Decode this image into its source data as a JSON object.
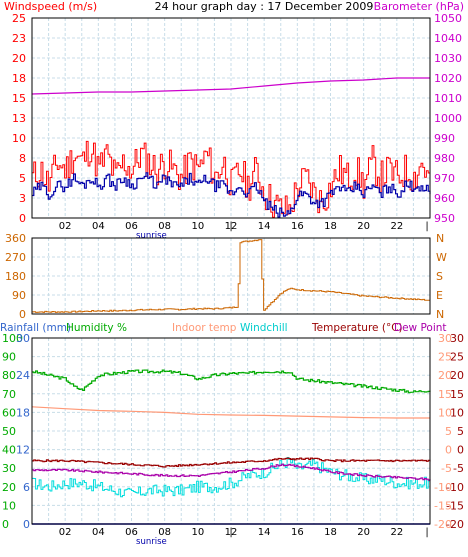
{
  "colors": {
    "windspeed": "#ff0000",
    "windspeed_avg": "#0000aa",
    "barometer": "#cc00cc",
    "winddir": "#cc6600",
    "rainfall": "#0000cc",
    "humidity": "#00aa00",
    "indoor": "#ff9977",
    "windchill": "#00dddd",
    "temperature": "#990000",
    "dewpoint": "#aa00aa",
    "grid": "#c8dde8",
    "axis_blue": "#0000cc",
    "text_dark": "#000000",
    "border": "#000000"
  },
  "chart_data": [
    {
      "type": "line",
      "title": "24 hour graph day : 17 December 2009",
      "legend": {
        "left": "Windspeed (m/s)",
        "right": "Barometer (hPa)"
      },
      "x_tick_labels": [
        "02",
        "04",
        "06",
        "08",
        "10",
        "12",
        "14",
        "16",
        "18",
        "20",
        "22"
      ],
      "x_annotation": "sunrise",
      "x_range_hours": [
        0,
        24
      ],
      "y_left_ticks": [
        "0",
        "3",
        "5",
        "8",
        "10",
        "13",
        "15",
        "18",
        "20",
        "23",
        "25"
      ],
      "y_left_range": [
        0,
        25
      ],
      "y_right_ticks": [
        "950",
        "960",
        "970",
        "980",
        "990",
        "1000",
        "1010",
        "1020",
        "1030",
        "1040",
        "1050"
      ],
      "y_right_range": [
        950,
        1050
      ],
      "grid": true,
      "series": [
        {
          "name": "Windspeed (m/s)",
          "axis": "left",
          "x": [
            0,
            0.5,
            1,
            1.5,
            2,
            2.5,
            3,
            3.5,
            4,
            4.5,
            5,
            5.5,
            6,
            6.5,
            7,
            7.5,
            8,
            8.5,
            9,
            9.5,
            10,
            10.5,
            11,
            11.5,
            12,
            12.5,
            13,
            13.5,
            14,
            14.5,
            15,
            15.5,
            16,
            16.5,
            17,
            17.5,
            18,
            18.5,
            19,
            19.5,
            20,
            20.5,
            21,
            21.5,
            22,
            22.5,
            23,
            23.5,
            24
          ],
          "y": [
            5,
            6,
            4,
            7,
            6,
            8,
            7,
            9,
            6,
            8,
            5,
            7,
            6,
            8,
            7,
            6,
            7,
            6,
            5,
            7,
            6,
            8,
            5,
            7,
            4,
            6,
            4,
            6,
            3,
            2,
            1,
            1,
            4,
            5,
            3,
            2,
            4,
            6,
            5,
            6,
            4,
            7,
            5,
            6,
            5,
            6,
            5,
            7,
            4
          ]
        },
        {
          "name": "Windspeed average",
          "axis": "left",
          "x": [
            0,
            0.5,
            1,
            1.5,
            2,
            2.5,
            3,
            3.5,
            4,
            4.5,
            5,
            5.5,
            6,
            6.5,
            7,
            7.5,
            8,
            8.5,
            9,
            9.5,
            10,
            10.5,
            11,
            11.5,
            12,
            12.5,
            13,
            13.5,
            14,
            14.5,
            15,
            15.5,
            16,
            16.5,
            17,
            17.5,
            18,
            18.5,
            19,
            19.5,
            20,
            20.5,
            21,
            21.5,
            22,
            22.5,
            23,
            23.5,
            24
          ],
          "y": [
            3,
            4,
            3,
            4,
            4,
            5,
            4,
            5,
            4,
            5,
            4,
            5,
            4,
            5,
            5,
            4,
            5,
            4,
            4,
            5,
            4,
            5,
            4,
            4,
            3,
            4,
            3,
            4,
            2,
            1,
            0.5,
            0.5,
            3,
            3,
            2,
            2,
            3,
            4,
            3,
            4,
            3,
            4,
            3,
            4,
            3,
            4,
            4,
            4,
            3
          ]
        },
        {
          "name": "Barometer (hPa)",
          "axis": "right",
          "x": [
            0,
            2,
            4,
            6,
            8,
            10,
            12,
            14,
            16,
            18,
            20,
            22,
            24
          ],
          "y": [
            1012,
            1012.5,
            1013,
            1013,
            1013.5,
            1014,
            1014.5,
            1016,
            1017.5,
            1018.5,
            1019,
            1020,
            1020
          ]
        }
      ]
    },
    {
      "type": "line",
      "title": "",
      "y_left_ticks": [
        "0",
        "90",
        "180",
        "270",
        "360"
      ],
      "y_left_range": [
        0,
        360
      ],
      "y_right_ticks": [
        "N",
        "E",
        "S",
        "W",
        "N"
      ],
      "grid": true,
      "series": [
        {
          "name": "Wind direction",
          "x": [
            0,
            1,
            2,
            3,
            4,
            5,
            6,
            7,
            8,
            9,
            10,
            11,
            12,
            12.4,
            12.5,
            13,
            13.5,
            13.8,
            13.9,
            14.2,
            14.5,
            15,
            15.5,
            16,
            17,
            18,
            19,
            20,
            21,
            22,
            23,
            24
          ],
          "y": [
            10,
            10,
            10,
            12,
            15,
            15,
            18,
            20,
            22,
            22,
            25,
            25,
            30,
            35,
            340,
            345,
            350,
            355,
            10,
            40,
            60,
            100,
            120,
            115,
            110,
            105,
            95,
            85,
            80,
            75,
            70,
            65
          ]
        }
      ]
    },
    {
      "type": "line",
      "title": "",
      "legend": {
        "rainfall": "Rainfall (mm)",
        "humidity": "Humidity %",
        "indoor": "Indoor temp",
        "windchill": "Windchill",
        "temperature": "Temperature (°C)",
        "dewpoint": "Dew Point"
      },
      "x_tick_labels": [
        "02",
        "04",
        "06",
        "08",
        "10",
        "12",
        "14",
        "16",
        "18",
        "20",
        "22"
      ],
      "x_annotation": "sunrise",
      "y_left_ticks_rain": [
        "0",
        "6",
        "12",
        "18",
        "24",
        "30"
      ],
      "y_left_ticks_hum": [
        "0",
        "10",
        "20",
        "30",
        "40",
        "50",
        "60",
        "70",
        "80",
        "90",
        "100"
      ],
      "y_right_ticks_temp": [
        "-20",
        "-15",
        "-10",
        "-5",
        "0",
        "5",
        "10",
        "15",
        "20",
        "25",
        "30"
      ],
      "y_right_range": [
        -20,
        30
      ],
      "grid": true,
      "series": [
        {
          "name": "Humidity %",
          "axis": "humidity",
          "x": [
            0,
            1,
            2,
            2.5,
            3,
            3.5,
            4,
            5,
            6,
            7,
            8,
            9,
            10,
            11,
            12,
            13,
            14,
            15,
            15.5,
            16,
            17,
            18,
            19,
            20,
            21,
            22,
            23,
            24
          ],
          "y": [
            82,
            80,
            78,
            74,
            72,
            76,
            80,
            81,
            82,
            82,
            82,
            81,
            78,
            80,
            81,
            81,
            82,
            82,
            82,
            78,
            77,
            76,
            75,
            74,
            73,
            72,
            71,
            72
          ]
        },
        {
          "name": "Indoor temp",
          "axis": "temp",
          "x": [
            0,
            2,
            4,
            6,
            8,
            10,
            12,
            14,
            16,
            18,
            20,
            22,
            24
          ],
          "y": [
            11.5,
            11,
            10.5,
            10.3,
            10,
            9.5,
            9.3,
            9.2,
            9,
            8.8,
            8.6,
            8.5,
            8.5
          ]
        },
        {
          "name": "Temperature (°C)",
          "axis": "temp",
          "x": [
            0,
            2,
            4,
            6,
            8,
            10,
            12,
            14,
            15,
            16,
            17,
            18,
            20,
            22,
            24
          ],
          "y": [
            -3,
            -3,
            -3.5,
            -4,
            -4.5,
            -4,
            -3.5,
            -3,
            -2.5,
            -2.5,
            -2.5,
            -3,
            -3,
            -3,
            -3
          ]
        },
        {
          "name": "Dew Point",
          "axis": "temp",
          "x": [
            0,
            2,
            4,
            6,
            8,
            10,
            12,
            14,
            15,
            16,
            17,
            18,
            20,
            22,
            24
          ],
          "y": [
            -5.5,
            -5.5,
            -6,
            -6.5,
            -7,
            -7,
            -6,
            -5,
            -4,
            -4.5,
            -5,
            -6,
            -7,
            -7.5,
            -8
          ]
        },
        {
          "name": "Windchill",
          "axis": "temp",
          "x": [
            0,
            1,
            2,
            3,
            4,
            5,
            6,
            7,
            8,
            9,
            10,
            11,
            12,
            13,
            14,
            15,
            15.5,
            16,
            17,
            18,
            19,
            20,
            21,
            22,
            23,
            24
          ],
          "y": [
            -9,
            -10,
            -9,
            -9,
            -10,
            -11,
            -12,
            -11,
            -11,
            -11,
            -10,
            -10,
            -9,
            -7,
            -6,
            -4,
            -3,
            -5,
            -4,
            -6,
            -7,
            -8,
            -8,
            -9,
            -9,
            -9
          ]
        },
        {
          "name": "Rainfall (mm)",
          "axis": "rain",
          "x": [
            0,
            24
          ],
          "y": [
            0,
            0
          ]
        }
      ]
    }
  ]
}
